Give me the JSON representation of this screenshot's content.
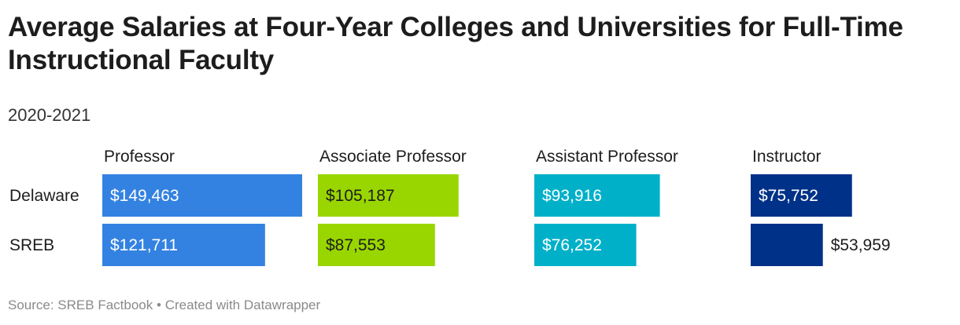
{
  "title": "Average Salaries at Four-Year Colleges and Universities for Full-Time Instructional Faculty",
  "subtitle": "2020-2021",
  "footer": {
    "source": "Source: SREB Factbook",
    "separator": "•",
    "credit": "Created with Datawrapper"
  },
  "chart_data": {
    "type": "bar",
    "orientation": "horizontal",
    "layout": "small-multiples",
    "categories": [
      "Delaware",
      "SREB"
    ],
    "series": [
      {
        "name": "Professor",
        "values": [
          149463,
          121711
        ],
        "labels": [
          "$149,463",
          "$121,711"
        ],
        "color": "#3382e1"
      },
      {
        "name": "Associate Professor",
        "values": [
          105187,
          87553
        ],
        "labels": [
          "$105,187",
          "$87,553"
        ],
        "color": "#99d600"
      },
      {
        "name": "Assistant Professor",
        "values": [
          93916,
          76252
        ],
        "labels": [
          "$93,916",
          "$76,252"
        ],
        "color": "#00b0c9"
      },
      {
        "name": "Instructor",
        "values": [
          75752,
          53959
        ],
        "labels": [
          "$75,752",
          "$53,959"
        ],
        "color": "#003188"
      }
    ],
    "xlim": [
      0,
      149463
    ],
    "grid": false,
    "legend": "none",
    "value_labels": "inside-bar"
  }
}
